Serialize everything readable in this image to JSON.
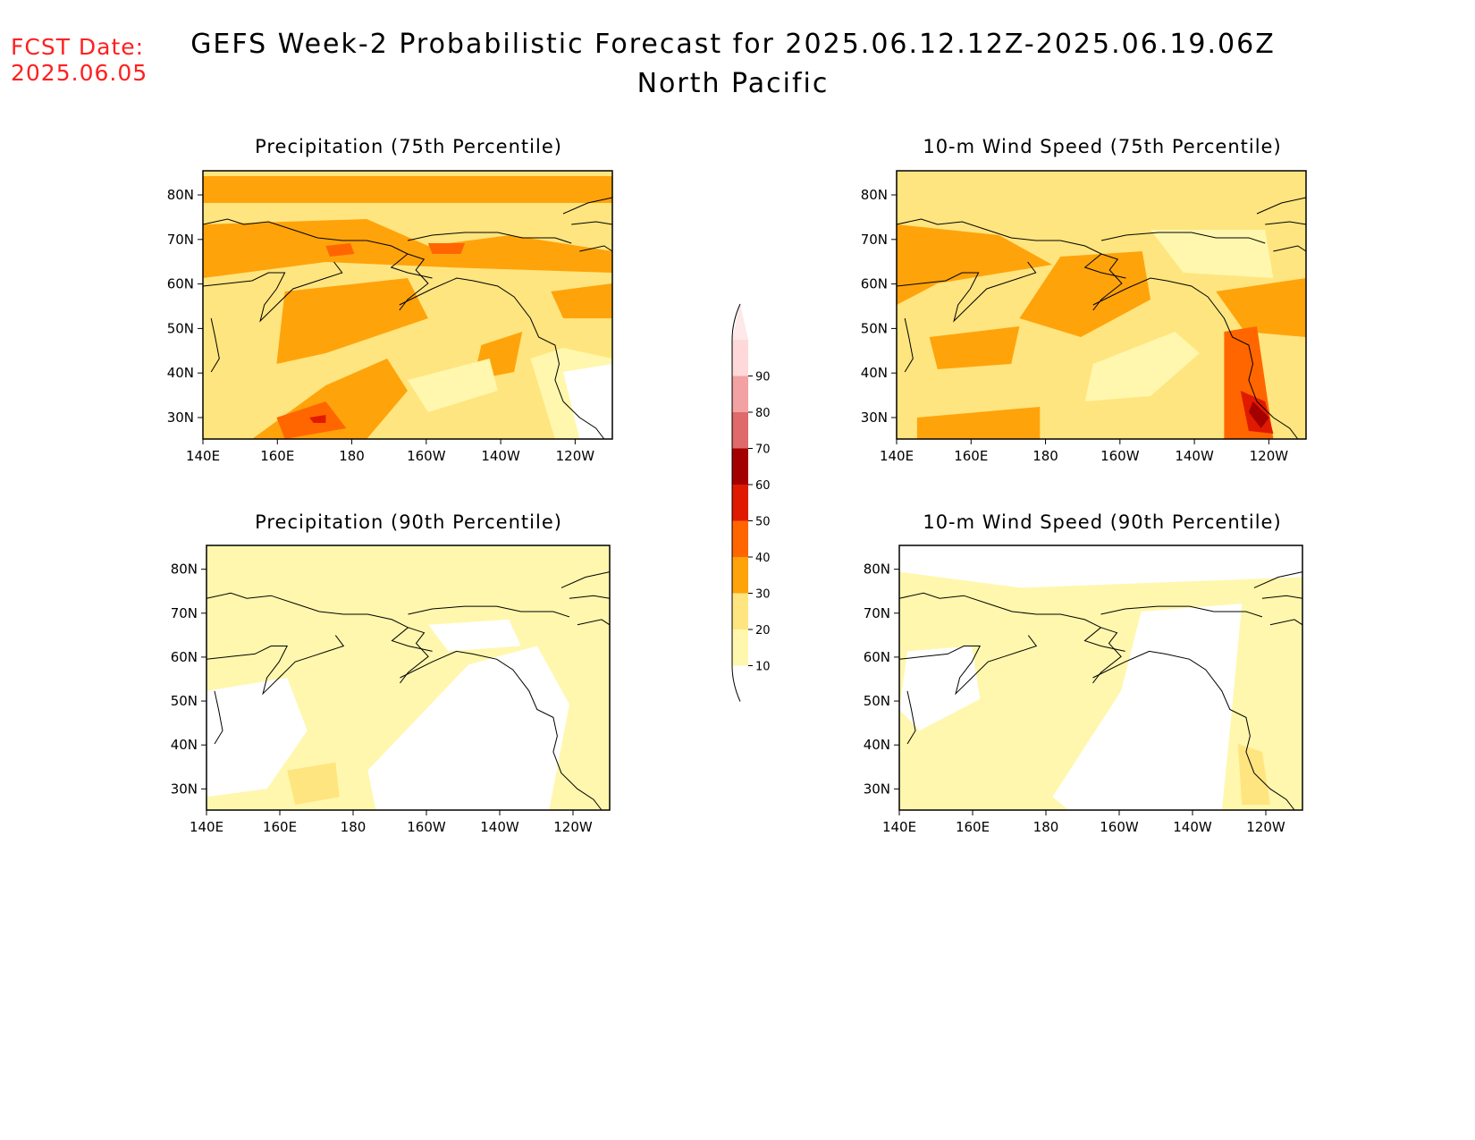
{
  "header": {
    "fcst_label": "FCST Date:",
    "fcst_date": "2025.06.05",
    "title": "GEFS Week-2 Probabilistic Forecast for 2025.06.12.12Z-2025.06.19.06Z",
    "region": "North Pacific"
  },
  "axes": {
    "lon_ticks": [
      "140E",
      "160E",
      "180",
      "160W",
      "140W",
      "120W"
    ],
    "lat_ticks": [
      "80N",
      "70N",
      "60N",
      "50N",
      "40N",
      "30N"
    ]
  },
  "colorbar": {
    "levels": [
      10,
      20,
      30,
      40,
      50,
      60,
      70,
      80,
      90
    ],
    "labels": [
      "10",
      "20",
      "30",
      "40",
      "50",
      "60",
      "70",
      "80",
      "90"
    ],
    "colors": [
      "#fff7ad",
      "#ffe57f",
      "#ffa30b",
      "#ff6600",
      "#e01a00",
      "#a30000",
      "#e06a6a",
      "#f2a2a2",
      "#ffd9d9"
    ]
  },
  "panels": [
    {
      "id": "precip75",
      "title": "Precipitation (75th Percentile)",
      "base": "#ffe57f",
      "blobs": [
        {
          "c": "#ffa30b",
          "p": [
            [
              0,
              0.02
            ],
            [
              1,
              0.02
            ],
            [
              1,
              0.12
            ],
            [
              0,
              0.12
            ]
          ]
        },
        {
          "c": "#ffa30b",
          "p": [
            [
              0,
              0.2
            ],
            [
              0.4,
              0.18
            ],
            [
              0.55,
              0.28
            ],
            [
              0.75,
              0.24
            ],
            [
              1,
              0.3
            ],
            [
              1,
              0.38
            ],
            [
              0.6,
              0.36
            ],
            [
              0.3,
              0.34
            ],
            [
              0,
              0.4
            ]
          ]
        },
        {
          "c": "#ffa30b",
          "p": [
            [
              0.2,
              0.45
            ],
            [
              0.5,
              0.4
            ],
            [
              0.55,
              0.55
            ],
            [
              0.3,
              0.68
            ],
            [
              0.18,
              0.72
            ]
          ]
        },
        {
          "c": "#ffa30b",
          "p": [
            [
              0.12,
              1
            ],
            [
              0.3,
              0.8
            ],
            [
              0.45,
              0.7
            ],
            [
              0.5,
              0.82
            ],
            [
              0.4,
              1
            ]
          ]
        },
        {
          "c": "#ffa30b",
          "p": [
            [
              0.85,
              0.45
            ],
            [
              1,
              0.42
            ],
            [
              1,
              0.55
            ],
            [
              0.88,
              0.55
            ]
          ]
        },
        {
          "c": "#ffa30b",
          "p": [
            [
              0.68,
              0.65
            ],
            [
              0.78,
              0.6
            ],
            [
              0.76,
              0.75
            ],
            [
              0.66,
              0.78
            ]
          ]
        },
        {
          "c": "#fff7ad",
          "p": [
            [
              0.5,
              0.78
            ],
            [
              0.7,
              0.7
            ],
            [
              0.72,
              0.82
            ],
            [
              0.55,
              0.9
            ]
          ]
        },
        {
          "c": "#fff7ad",
          "p": [
            [
              0.8,
              0.7
            ],
            [
              0.88,
              0.66
            ],
            [
              1,
              0.7
            ],
            [
              1,
              1
            ],
            [
              0.86,
              1
            ]
          ]
        },
        {
          "c": "#ffffff",
          "p": [
            [
              0.88,
              0.75
            ],
            [
              1,
              0.72
            ],
            [
              1,
              1
            ],
            [
              0.92,
              1
            ]
          ]
        },
        {
          "c": "#ff6600",
          "p": [
            [
              0.18,
              0.92
            ],
            [
              0.3,
              0.86
            ],
            [
              0.35,
              0.96
            ],
            [
              0.2,
              1
            ]
          ]
        },
        {
          "c": "#ff6600",
          "p": [
            [
              0.3,
              0.28
            ],
            [
              0.36,
              0.27
            ],
            [
              0.37,
              0.31
            ],
            [
              0.31,
              0.32
            ]
          ]
        },
        {
          "c": "#ff6600",
          "p": [
            [
              0.55,
              0.27
            ],
            [
              0.64,
              0.27
            ],
            [
              0.63,
              0.31
            ],
            [
              0.56,
              0.31
            ]
          ]
        },
        {
          "c": "#e01a00",
          "p": [
            [
              0.26,
              0.92
            ],
            [
              0.3,
              0.91
            ],
            [
              0.3,
              0.94
            ],
            [
              0.27,
              0.94
            ]
          ]
        }
      ]
    },
    {
      "id": "wind75",
      "title": "10-m Wind Speed (75th Percentile)",
      "base": "#ffe57f",
      "blobs": [
        {
          "c": "#ffa30b",
          "p": [
            [
              0,
              0.2
            ],
            [
              0.25,
              0.24
            ],
            [
              0.38,
              0.35
            ],
            [
              0.1,
              0.42
            ],
            [
              0,
              0.5
            ]
          ]
        },
        {
          "c": "#ffa30b",
          "p": [
            [
              0.4,
              0.32
            ],
            [
              0.6,
              0.3
            ],
            [
              0.62,
              0.48
            ],
            [
              0.45,
              0.62
            ],
            [
              0.3,
              0.55
            ]
          ]
        },
        {
          "c": "#ffa30b",
          "p": [
            [
              0.08,
              0.62
            ],
            [
              0.3,
              0.58
            ],
            [
              0.28,
              0.72
            ],
            [
              0.1,
              0.74
            ]
          ]
        },
        {
          "c": "#ffa30b",
          "p": [
            [
              0.05,
              0.92
            ],
            [
              0.35,
              0.88
            ],
            [
              0.35,
              1
            ],
            [
              0.05,
              1
            ]
          ]
        },
        {
          "c": "#ffa30b",
          "p": [
            [
              0.78,
              0.45
            ],
            [
              1,
              0.4
            ],
            [
              1,
              0.62
            ],
            [
              0.85,
              0.6
            ]
          ]
        },
        {
          "c": "#fff7ad",
          "p": [
            [
              0.48,
              0.72
            ],
            [
              0.68,
              0.6
            ],
            [
              0.74,
              0.68
            ],
            [
              0.62,
              0.84
            ],
            [
              0.46,
              0.86
            ]
          ]
        },
        {
          "c": "#fff7ad",
          "p": [
            [
              0.62,
              0.22
            ],
            [
              0.9,
              0.22
            ],
            [
              0.92,
              0.4
            ],
            [
              0.7,
              0.38
            ]
          ]
        },
        {
          "c": "#ff6600",
          "p": [
            [
              0.8,
              0.6
            ],
            [
              0.88,
              0.58
            ],
            [
              0.92,
              1
            ],
            [
              0.8,
              1
            ]
          ]
        },
        {
          "c": "#e01a00",
          "p": [
            [
              0.84,
              0.82
            ],
            [
              0.9,
              0.86
            ],
            [
              0.92,
              0.98
            ],
            [
              0.86,
              0.97
            ]
          ]
        },
        {
          "c": "#a30000",
          "p": [
            [
              0.87,
              0.86
            ],
            [
              0.91,
              0.92
            ],
            [
              0.89,
              0.96
            ],
            [
              0.86,
              0.9
            ]
          ]
        }
      ]
    },
    {
      "id": "precip90",
      "title": "Precipitation (90th Percentile)",
      "base": "#fff7ad",
      "blobs": [
        {
          "c": "#ffffff",
          "p": [
            [
              0,
              0.55
            ],
            [
              0.2,
              0.5
            ],
            [
              0.25,
              0.7
            ],
            [
              0.15,
              0.92
            ],
            [
              0,
              0.95
            ]
          ]
        },
        {
          "c": "#ffffff",
          "p": [
            [
              0.4,
              0.85
            ],
            [
              0.65,
              0.45
            ],
            [
              0.82,
              0.38
            ],
            [
              0.9,
              0.6
            ],
            [
              0.85,
              1
            ],
            [
              0.42,
              1
            ]
          ]
        },
        {
          "c": "#ffffff",
          "p": [
            [
              0.55,
              0.3
            ],
            [
              0.75,
              0.28
            ],
            [
              0.78,
              0.38
            ],
            [
              0.6,
              0.4
            ]
          ]
        },
        {
          "c": "#ffe57f",
          "p": [
            [
              0.2,
              0.85
            ],
            [
              0.32,
              0.82
            ],
            [
              0.33,
              0.95
            ],
            [
              0.22,
              0.98
            ]
          ]
        }
      ]
    },
    {
      "id": "wind90",
      "title": "10-m Wind Speed (90th Percentile)",
      "base": "#fff7ad",
      "blobs": [
        {
          "c": "#ffffff",
          "p": [
            [
              0,
              0.0
            ],
            [
              1,
              0.0
            ],
            [
              1,
              0.12
            ],
            [
              0.3,
              0.16
            ],
            [
              0,
              0.1
            ]
          ]
        },
        {
          "c": "#ffffff",
          "p": [
            [
              0.02,
              0.4
            ],
            [
              0.18,
              0.38
            ],
            [
              0.2,
              0.58
            ],
            [
              0.05,
              0.7
            ],
            [
              0,
              0.62
            ]
          ]
        },
        {
          "c": "#ffffff",
          "p": [
            [
              0.38,
              0.95
            ],
            [
              0.55,
              0.55
            ],
            [
              0.6,
              0.25
            ],
            [
              0.85,
              0.22
            ],
            [
              0.82,
              0.7
            ],
            [
              0.8,
              1
            ],
            [
              0.42,
              1
            ]
          ]
        },
        {
          "c": "#ffe57f",
          "p": [
            [
              0.84,
              0.75
            ],
            [
              0.9,
              0.78
            ],
            [
              0.92,
              0.98
            ],
            [
              0.85,
              0.98
            ]
          ]
        }
      ]
    }
  ]
}
